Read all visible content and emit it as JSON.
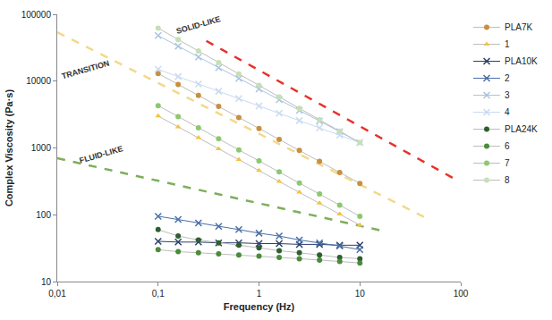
{
  "chart_data": {
    "type": "line",
    "x_label": "Frequency (Hz)",
    "y_label": "Complex Viscosity (Pa·s)",
    "log": true,
    "grid": false,
    "legend": "right",
    "xlim": [
      0.01,
      100
    ],
    "ylim": [
      10,
      100000
    ],
    "xticks": [
      {
        "value": 0.01,
        "label": "0,01"
      },
      {
        "value": 0.1,
        "label": "0,1"
      },
      1,
      10,
      100
    ],
    "yticks": [
      10,
      100,
      1000,
      10000,
      100000
    ],
    "x": [
      0.1,
      0.158,
      0.251,
      0.398,
      0.631,
      1,
      1.585,
      2.512,
      3.981,
      6.31,
      10
    ],
    "series": [
      {
        "name": "PLA7K",
        "color": "#c8903f",
        "marker": "circle",
        "values": [
          13000,
          8900,
          6100,
          4180,
          2860,
          1960,
          1340,
          920,
          630,
          430,
          295
        ]
      },
      {
        "name": "1",
        "color": "#f5c242",
        "marker": "triangle",
        "values": [
          3000,
          2060,
          1420,
          973,
          668,
          459,
          315,
          217,
          149,
          102,
          70
        ]
      },
      {
        "name": "PLA10K",
        "color": "#2b3f6b",
        "marker": "x",
        "values": [
          40,
          39,
          39,
          38,
          38,
          37,
          37,
          36,
          36,
          35,
          35
        ]
      },
      {
        "name": "2",
        "color": "#4a6fa5",
        "marker": "x",
        "values": [
          95,
          85,
          75,
          67,
          60,
          53,
          48,
          42,
          38,
          34,
          30
        ]
      },
      {
        "name": "3",
        "color": "#a9c4e0",
        "marker": "x",
        "values": [
          48000,
          33200,
          23000,
          15900,
          11000,
          7620,
          5270,
          3650,
          2530,
          1750,
          1200
        ]
      },
      {
        "name": "4",
        "color": "#c9daf0",
        "marker": "x",
        "values": [
          15000,
          11700,
          9060,
          7040,
          5470,
          4250,
          3300,
          2570,
          2000,
          1550,
          1200
        ]
      },
      {
        "name": "PLA24K",
        "color": "#2e5f2e",
        "marker": "circle",
        "values": [
          60,
          48,
          42,
          38,
          35,
          32,
          29,
          27,
          25,
          23,
          22
        ]
      },
      {
        "name": "6",
        "color": "#4a8c3a",
        "marker": "circle",
        "values": [
          30,
          28,
          27,
          26,
          25,
          24,
          23,
          22,
          21,
          20,
          19
        ]
      },
      {
        "name": "7",
        "color": "#8cc870",
        "marker": "circle",
        "values": [
          4300,
          2940,
          2000,
          1370,
          935,
          640,
          437,
          298,
          204,
          139,
          95
        ]
      },
      {
        "name": "8",
        "color": "#c5e0b4",
        "marker": "circle",
        "values": [
          62000,
          41800,
          28200,
          19000,
          12800,
          8620,
          5810,
          3920,
          2640,
          1780,
          1200
        ]
      }
    ],
    "reference_lines": [
      {
        "color": "#e8312a",
        "line_style": "dash",
        "x": [
          0.3,
          93
        ],
        "y": [
          40000,
          325
        ]
      },
      {
        "color": "#f2d98a",
        "line_style": "dash",
        "x": [
          0.01,
          45
        ],
        "y": [
          54000,
          90
        ]
      },
      {
        "color": "#7fae5a",
        "line_style": "dash",
        "x": [
          0.01,
          18
        ],
        "y": [
          700,
          56
        ]
      }
    ],
    "annotations": [
      {
        "text": "SOLID-LIKE",
        "x": 0.25,
        "y": 70000
      },
      {
        "text": "TRANSITION",
        "x": 0.019,
        "y": 15000
      },
      {
        "text": "FLUID-LIKE",
        "x": 0.027,
        "y": 800
      }
    ]
  }
}
